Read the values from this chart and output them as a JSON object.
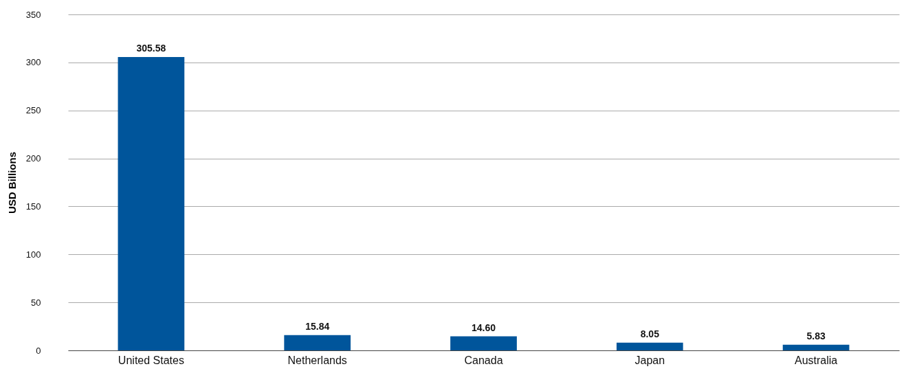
{
  "chart_data": {
    "type": "bar",
    "ylabel": "USD Billions",
    "categories": [
      "United States",
      "Netherlands",
      "Canada",
      "Japan",
      "Australia"
    ],
    "values": [
      305.58,
      15.84,
      14.6,
      8.05,
      5.83
    ],
    "value_labels": [
      "305.58",
      "15.84",
      "14.60",
      "8.05",
      "5.83"
    ],
    "color": "#00559b",
    "ylim": [
      0,
      350
    ],
    "yticks": [
      0,
      50,
      100,
      150,
      200,
      250,
      300,
      350
    ],
    "grid": "y"
  }
}
